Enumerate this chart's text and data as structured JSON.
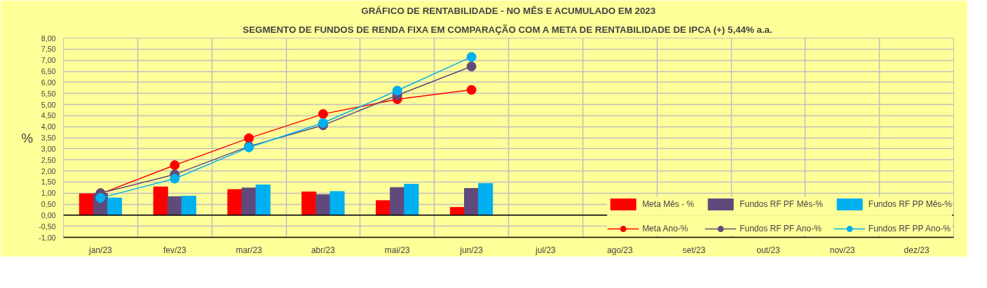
{
  "chart_data": {
    "type": "bar",
    "title": "GRÁFICO DE RENTABILIDADE - NO MÊS E ACUMULADO EM 2023",
    "subtitle": "SEGMENTO DE FUNDOS DE RENDA FIXA EM COMPARAÇÃO COM A META DE RENTABILIDADE DE IPCA (+) 5,44% a.a.",
    "ylabel": "%",
    "categories": [
      "jan/23",
      "fev/23",
      "mar/23",
      "abr/23",
      "mai/23",
      "jun/23",
      "jul/23",
      "ago/23",
      "set/23",
      "out/23",
      "nov/23",
      "dez/23"
    ],
    "series": [
      {
        "name": "Meta Mês - %",
        "color": "#ff0000",
        "values": [
          0.97,
          1.28,
          1.16,
          1.05,
          0.66,
          0.35,
          null,
          null,
          null,
          null,
          null,
          null
        ]
      },
      {
        "name": "Fundos RF PF Mês-%",
        "color": "#604a7b",
        "values": [
          0.98,
          0.84,
          1.23,
          0.93,
          1.25,
          1.21,
          null,
          null,
          null,
          null,
          null,
          null
        ]
      },
      {
        "name": "Fundos RF PP Mês-%",
        "color": "#00b0f0",
        "values": [
          0.78,
          0.86,
          1.37,
          1.07,
          1.4,
          1.43,
          null,
          null,
          null,
          null,
          null,
          null
        ]
      },
      {
        "name": "Meta Ano-%",
        "type": "line",
        "color": "#ff0000",
        "values": [
          0.97,
          2.26,
          3.48,
          4.57,
          5.24,
          5.66,
          null,
          null,
          null,
          null,
          null,
          null
        ]
      },
      {
        "name": "Fundos RF PF Ano-%",
        "type": "line",
        "color": "#604a7b",
        "values": [
          1.0,
          1.84,
          3.11,
          4.06,
          5.42,
          6.72,
          null,
          null,
          null,
          null,
          null,
          null
        ]
      },
      {
        "name": "Fundos RF PP Ano-%",
        "type": "line",
        "color": "#00b0f0",
        "values": [
          0.78,
          1.65,
          3.06,
          4.17,
          5.63,
          7.15,
          null,
          null,
          null,
          null,
          null,
          null
        ]
      }
    ],
    "ylim": [
      -1,
      8
    ],
    "yticks": [
      {
        "value": -1,
        "label": "-1,00"
      },
      {
        "value": -0.5,
        "label": "-0,50"
      },
      {
        "value": 0,
        "label": "0,00"
      },
      {
        "value": 0.5,
        "label": "0,50"
      },
      {
        "value": 1,
        "label": "1,00"
      },
      {
        "value": 1.5,
        "label": "1,50"
      },
      {
        "value": 2,
        "label": "2,00"
      },
      {
        "value": 2.5,
        "label": "2,50"
      },
      {
        "value": 3,
        "label": "3,00"
      },
      {
        "value": 3.5,
        "label": "3,50"
      },
      {
        "value": 4,
        "label": "4,00"
      },
      {
        "value": 4.5,
        "label": "4,50"
      },
      {
        "value": 5,
        "label": "5,00"
      },
      {
        "value": 5.5,
        "label": "5,50"
      },
      {
        "value": 6,
        "label": "6,00"
      },
      {
        "value": 6.5,
        "label": "6,50"
      },
      {
        "value": 7,
        "label": "7,00"
      },
      {
        "value": 7.5,
        "label": "7,50"
      },
      {
        "value": 8,
        "label": "8,00"
      }
    ],
    "grid": true,
    "legend": "bottom right",
    "marker": "circle"
  }
}
